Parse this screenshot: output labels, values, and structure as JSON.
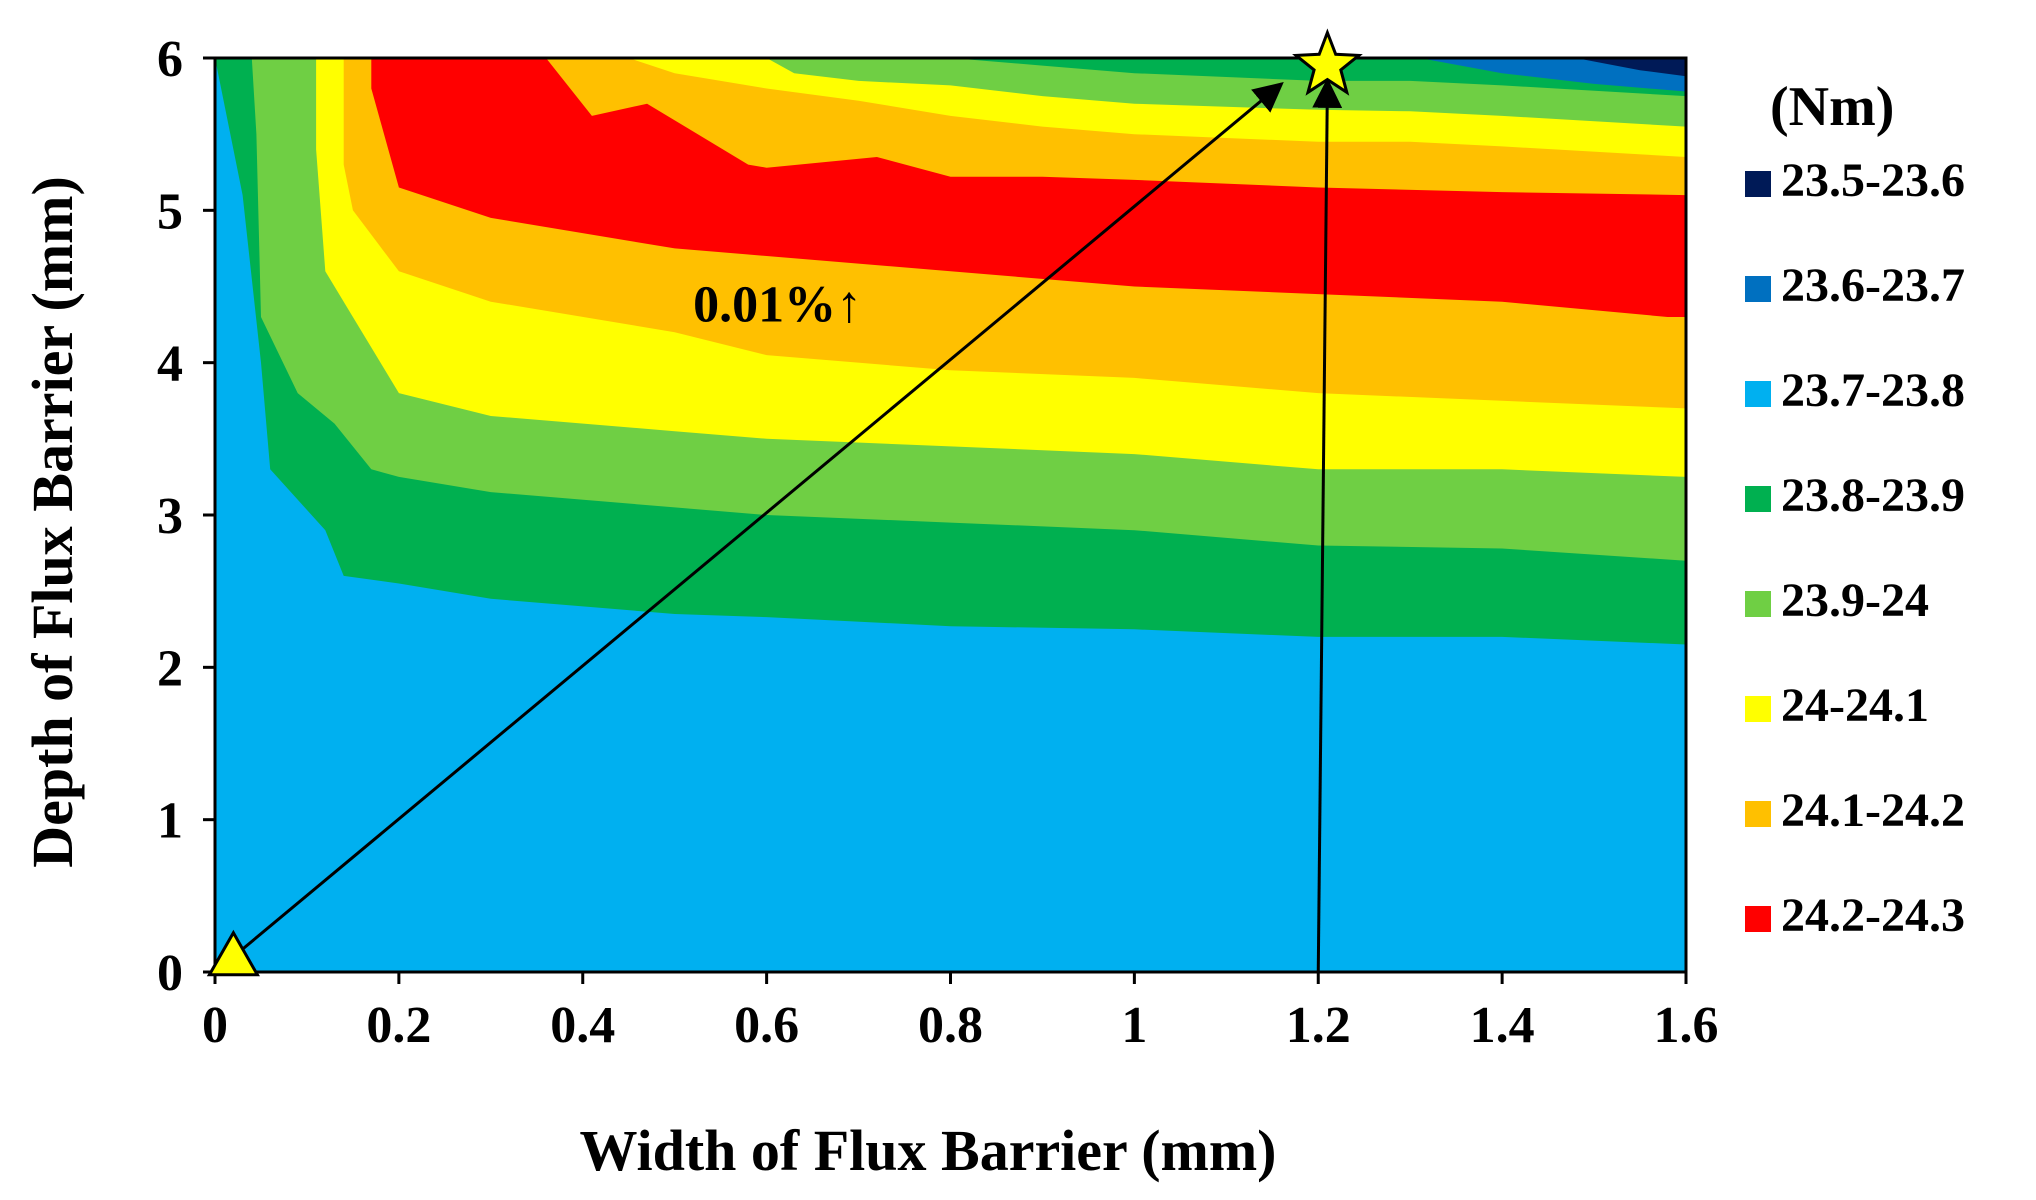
{
  "chart_data": {
    "type": "contour",
    "title": "",
    "xlabel": "Width of Flux Barrier (mm)",
    "ylabel": "Depth of Flux Barrier (mm)",
    "xlim": [
      0,
      1.6
    ],
    "ylim": [
      0,
      6
    ],
    "x_ticks": [
      "0",
      "0.2",
      "0.4",
      "0.6",
      "0.8",
      "1",
      "1.2",
      "1.4",
      "1.6"
    ],
    "y_ticks": [
      "0",
      "1",
      "2",
      "3",
      "4",
      "5",
      "6"
    ],
    "legend_title": "(Nm)",
    "legend_position": "right",
    "levels": [
      {
        "label": "23.5-23.6",
        "color": "#001a57"
      },
      {
        "label": "23.6-23.7",
        "color": "#0070c0"
      },
      {
        "label": "23.7-23.8",
        "color": "#00b0f0"
      },
      {
        "label": "23.8-23.9",
        "color": "#00b050"
      },
      {
        "label": "23.9-24",
        "color": "#6fcf44"
      },
      {
        "label": "24-24.1",
        "color": "#ffff00"
      },
      {
        "label": "24.1-24.2",
        "color": "#ffc000"
      },
      {
        "label": "24.2-24.3",
        "color": "#ff0000"
      }
    ],
    "band_boundaries": [
      {
        "band": "23.8-23.9",
        "color": "#00b050",
        "points": [
          [
            0.0,
            6.0
          ],
          [
            0.03,
            5.1
          ],
          [
            0.05,
            4.0
          ],
          [
            0.06,
            3.3
          ],
          [
            0.12,
            2.9
          ],
          [
            0.14,
            2.6
          ],
          [
            0.2,
            2.55
          ],
          [
            0.3,
            2.45
          ],
          [
            0.4,
            2.4
          ],
          [
            0.5,
            2.35
          ],
          [
            0.6,
            2.33
          ],
          [
            0.8,
            2.27
          ],
          [
            1.0,
            2.25
          ],
          [
            1.2,
            2.2
          ],
          [
            1.4,
            2.2
          ],
          [
            1.6,
            2.15
          ],
          [
            1.6,
            6.0
          ]
        ]
      },
      {
        "band": "23.9-24",
        "color": "#6fcf44",
        "points": [
          [
            0.04,
            6.0
          ],
          [
            0.045,
            5.5
          ],
          [
            0.05,
            4.3
          ],
          [
            0.09,
            3.8
          ],
          [
            0.13,
            3.6
          ],
          [
            0.17,
            3.3
          ],
          [
            0.2,
            3.25
          ],
          [
            0.3,
            3.15
          ],
          [
            0.5,
            3.05
          ],
          [
            0.6,
            3.0
          ],
          [
            0.8,
            2.95
          ],
          [
            1.0,
            2.9
          ],
          [
            1.2,
            2.8
          ],
          [
            1.4,
            2.78
          ],
          [
            1.6,
            2.7
          ],
          [
            1.6,
            5.75
          ],
          [
            1.4,
            5.82
          ],
          [
            1.3,
            5.85
          ],
          [
            1.2,
            5.85
          ],
          [
            1.0,
            5.9
          ],
          [
            0.9,
            5.95
          ],
          [
            0.8,
            6.0
          ]
        ]
      },
      {
        "band": "24-24.1",
        "color": "#ffff00",
        "points": [
          [
            0.11,
            6.0
          ],
          [
            0.11,
            5.4
          ],
          [
            0.12,
            4.6
          ],
          [
            0.15,
            4.3
          ],
          [
            0.2,
            3.8
          ],
          [
            0.3,
            3.65
          ],
          [
            0.5,
            3.55
          ],
          [
            0.6,
            3.5
          ],
          [
            0.8,
            3.45
          ],
          [
            1.0,
            3.4
          ],
          [
            1.2,
            3.3
          ],
          [
            1.4,
            3.3
          ],
          [
            1.6,
            3.25
          ],
          [
            1.6,
            5.55
          ],
          [
            1.4,
            5.62
          ],
          [
            1.3,
            5.65
          ],
          [
            1.2,
            5.66
          ],
          [
            1.0,
            5.7
          ],
          [
            0.9,
            5.75
          ],
          [
            0.8,
            5.82
          ],
          [
            0.7,
            5.85
          ],
          [
            0.63,
            5.9
          ],
          [
            0.6,
            6.0
          ]
        ]
      },
      {
        "band": "24.1-24.2",
        "color": "#ffc000",
        "points": [
          [
            0.14,
            6.0
          ],
          [
            0.14,
            5.3
          ],
          [
            0.15,
            5.0
          ],
          [
            0.2,
            4.6
          ],
          [
            0.3,
            4.4
          ],
          [
            0.5,
            4.2
          ],
          [
            0.6,
            4.05
          ],
          [
            0.8,
            3.95
          ],
          [
            1.0,
            3.9
          ],
          [
            1.2,
            3.8
          ],
          [
            1.4,
            3.75
          ],
          [
            1.6,
            3.7
          ],
          [
            1.6,
            5.35
          ],
          [
            1.4,
            5.42
          ],
          [
            1.3,
            5.45
          ],
          [
            1.2,
            5.45
          ],
          [
            1.0,
            5.5
          ],
          [
            0.9,
            5.55
          ],
          [
            0.8,
            5.62
          ],
          [
            0.7,
            5.72
          ],
          [
            0.6,
            5.8
          ],
          [
            0.5,
            5.9
          ],
          [
            0.45,
            6.0
          ]
        ]
      },
      {
        "band": "24.2-24.3",
        "color": "#ff0000",
        "points": [
          [
            0.17,
            6.0
          ],
          [
            0.17,
            5.8
          ],
          [
            0.2,
            5.15
          ],
          [
            0.3,
            4.95
          ],
          [
            0.5,
            4.75
          ],
          [
            0.6,
            4.7
          ],
          [
            0.8,
            4.6
          ],
          [
            1.0,
            4.5
          ],
          [
            1.2,
            4.45
          ],
          [
            1.4,
            4.4
          ],
          [
            1.58,
            4.3
          ],
          [
            1.6,
            4.3
          ],
          [
            1.6,
            5.1
          ],
          [
            1.4,
            5.12
          ],
          [
            1.2,
            5.15
          ],
          [
            1.0,
            5.2
          ],
          [
            0.9,
            5.22
          ],
          [
            0.8,
            5.22
          ],
          [
            0.72,
            5.35
          ],
          [
            0.6,
            5.28
          ],
          [
            0.58,
            5.3
          ],
          [
            0.47,
            5.7
          ],
          [
            0.41,
            5.62
          ],
          [
            0.36,
            6.0
          ]
        ]
      },
      {
        "band": "23.6-23.7",
        "color": "#0070c0",
        "points": [
          [
            1.31,
            6.0
          ],
          [
            1.4,
            5.9
          ],
          [
            1.5,
            5.83
          ],
          [
            1.6,
            5.78
          ],
          [
            1.6,
            6.0
          ]
        ]
      },
      {
        "band": "23.5-23.6",
        "color": "#001a57",
        "points": [
          [
            1.48,
            6.0
          ],
          [
            1.55,
            5.92
          ],
          [
            1.6,
            5.88
          ],
          [
            1.6,
            6.0
          ]
        ]
      }
    ],
    "markers": [
      {
        "shape": "triangle",
        "x": 0.02,
        "y": 0.1,
        "color": "#ffff00"
      },
      {
        "shape": "star",
        "x": 1.21,
        "y": 5.95,
        "color": "#ffff00"
      }
    ],
    "arrows": [
      {
        "from": [
          0.02,
          0.1
        ],
        "to": [
          1.16,
          5.83
        ]
      },
      {
        "from": [
          1.2,
          0.0
        ],
        "to": [
          1.21,
          5.85
        ]
      }
    ],
    "annotations": [
      {
        "text": "0.01%↑",
        "x": 0.52,
        "y": 4.27
      }
    ]
  }
}
